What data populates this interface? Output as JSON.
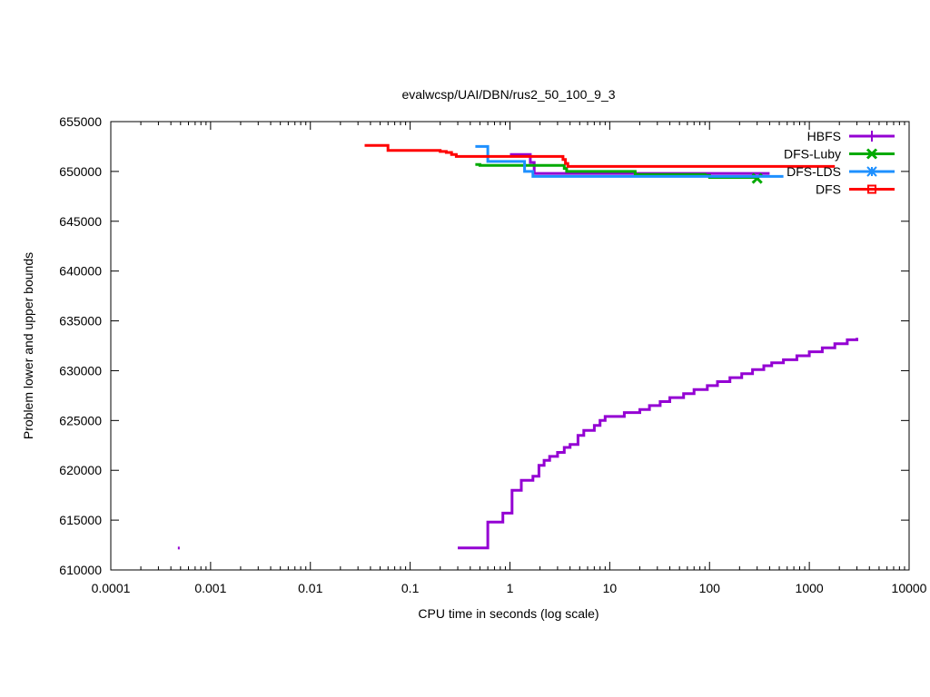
{
  "chart_data": {
    "type": "line",
    "title": "evalwcsp/UAI/DBN/rus2_50_100_9_3",
    "xlabel": "CPU time in seconds (log scale)",
    "ylabel": "Problem lower and upper bounds",
    "xscale": "log",
    "xlim": [
      0.0001,
      10000
    ],
    "ylim": [
      610000,
      655000
    ],
    "x_ticks": [
      0.0001,
      0.001,
      0.01,
      0.1,
      1,
      10,
      100,
      1000,
      10000
    ],
    "x_tick_labels": [
      "0.0001",
      "0.001",
      "0.01",
      "0.1",
      "1",
      "10",
      "100",
      "1000",
      "10000"
    ],
    "y_ticks": [
      610000,
      615000,
      620000,
      625000,
      630000,
      635000,
      640000,
      645000,
      650000,
      655000
    ],
    "y_tick_labels": [
      "610000",
      "615000",
      "620000",
      "625000",
      "630000",
      "635000",
      "640000",
      "645000",
      "650000",
      "655000"
    ],
    "grid": false,
    "legend_position": "top-right",
    "series": [
      {
        "name": "HBFS",
        "color": "#9400d3",
        "marker": "plus",
        "step": true,
        "points": [
          [
            0.3,
            612200
          ],
          [
            0.6,
            614800
          ],
          [
            0.85,
            615700
          ],
          [
            1.05,
            618000
          ],
          [
            1.3,
            619000
          ],
          [
            1.7,
            619400
          ],
          [
            1.95,
            620500
          ],
          [
            2.2,
            621000
          ],
          [
            2.5,
            621400
          ],
          [
            3.0,
            621800
          ],
          [
            3.5,
            622300
          ],
          [
            4.0,
            622600
          ],
          [
            4.8,
            623500
          ],
          [
            5.5,
            624000
          ],
          [
            7.0,
            624500
          ],
          [
            8.0,
            625000
          ],
          [
            9.0,
            625400
          ],
          [
            14,
            625800
          ],
          [
            20,
            626100
          ],
          [
            25,
            626500
          ],
          [
            32,
            626900
          ],
          [
            40,
            627300
          ],
          [
            55,
            627700
          ],
          [
            70,
            628100
          ],
          [
            95,
            628500
          ],
          [
            120,
            628900
          ],
          [
            160,
            629300
          ],
          [
            210,
            629700
          ],
          [
            270,
            630100
          ],
          [
            350,
            630500
          ],
          [
            420,
            630800
          ],
          [
            550,
            631100
          ],
          [
            750,
            631500
          ],
          [
            1000,
            631900
          ],
          [
            1350,
            632300
          ],
          [
            1800,
            632700
          ],
          [
            2400,
            633100
          ],
          [
            3000,
            633300
          ]
        ],
        "upper_points": [
          [
            1.0,
            651700
          ],
          [
            1.6,
            650900
          ],
          [
            1.75,
            649800
          ],
          [
            400,
            649800
          ]
        ],
        "isolated_points": [
          [
            0.00048,
            612200
          ]
        ]
      },
      {
        "name": "DFS-Luby",
        "color": "#00aa00",
        "marker": "x",
        "step": true,
        "points": [
          [
            0.45,
            650700
          ],
          [
            0.5,
            650600
          ],
          [
            3.5,
            650300
          ],
          [
            3.7,
            650000
          ],
          [
            18,
            649700
          ],
          [
            90,
            649600
          ],
          [
            100,
            649400
          ],
          [
            300,
            649300
          ]
        ],
        "marker_points": [
          [
            300,
            649300
          ]
        ]
      },
      {
        "name": "DFS-LDS",
        "color": "#1e90ff",
        "marker": "star",
        "step": true,
        "points": [
          [
            0.45,
            652500
          ],
          [
            0.6,
            651000
          ],
          [
            1.4,
            650000
          ],
          [
            1.7,
            649500
          ],
          [
            550,
            649500
          ]
        ]
      },
      {
        "name": "DFS",
        "color": "#ff0000",
        "marker": "square",
        "step": true,
        "points": [
          [
            0.035,
            652600
          ],
          [
            0.06,
            652100
          ],
          [
            0.2,
            652000
          ],
          [
            0.23,
            651900
          ],
          [
            0.26,
            651700
          ],
          [
            0.29,
            651500
          ],
          [
            3.4,
            651200
          ],
          [
            3.6,
            650800
          ],
          [
            3.8,
            650500
          ],
          [
            1800,
            650500
          ]
        ]
      }
    ]
  }
}
